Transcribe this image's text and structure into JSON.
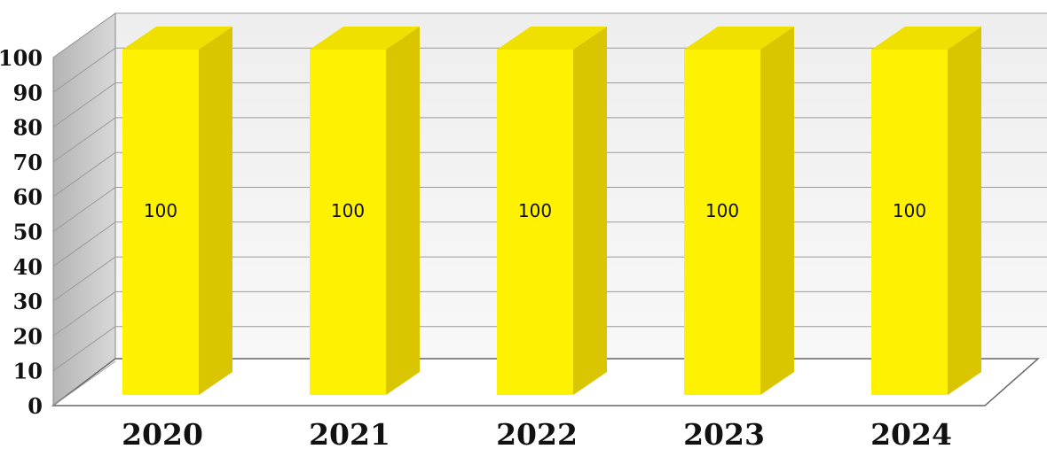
{
  "chart_data": {
    "type": "bar",
    "categories": [
      "2020",
      "2021",
      "2022",
      "2023",
      "2024"
    ],
    "values": [
      100,
      100,
      100,
      100,
      100
    ],
    "data_labels": [
      "100",
      "100",
      "100",
      "100",
      "100"
    ],
    "ylim": [
      0,
      100
    ],
    "yticks": [
      0,
      10,
      20,
      30,
      40,
      50,
      60,
      70,
      80,
      90,
      100
    ],
    "ytick_labels": [
      "0",
      "10",
      "20",
      "30",
      "40",
      "50",
      "60",
      "70",
      "80",
      "90",
      "100"
    ],
    "grid": true,
    "style": "3d-column",
    "colors": {
      "bar_front": "#FFF200",
      "bar_side": "#D9C600",
      "bar_top": "#EFE000",
      "back_wall": "#E6E6E6",
      "side_wall": "#C4C4C4",
      "grid": "#9A9A9A"
    }
  }
}
